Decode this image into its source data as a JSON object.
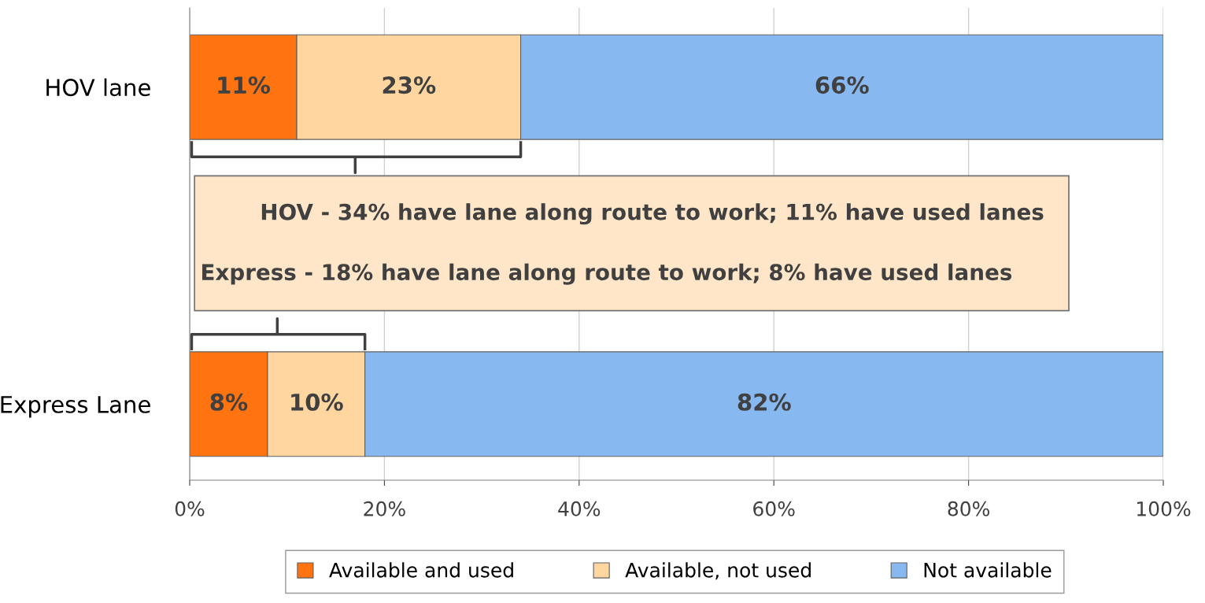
{
  "chart_data": {
    "type": "bar",
    "orientation": "horizontal",
    "stacked": true,
    "categories": [
      "HOV lane",
      "Express Lane"
    ],
    "series": [
      {
        "name": "Available and used",
        "color": "#ff7410",
        "values": [
          11,
          8
        ],
        "value_labels": [
          "11%",
          "8%"
        ]
      },
      {
        "name": "Available, not used",
        "color": "#ffd5a0",
        "values": [
          23,
          10
        ],
        "value_labels": [
          "23%",
          "10%"
        ]
      },
      {
        "name": "Not available",
        "color": "#88b8f0",
        "values": [
          66,
          82
        ],
        "value_labels": [
          "66%",
          "82%"
        ]
      }
    ],
    "xlim": [
      0,
      100
    ],
    "xticks": [
      {
        "value": 0,
        "label": "0%"
      },
      {
        "value": 20,
        "label": "20%"
      },
      {
        "value": 40,
        "label": "40%"
      },
      {
        "value": 60,
        "label": "60%"
      },
      {
        "value": 80,
        "label": "80%"
      },
      {
        "value": 100,
        "label": "100%"
      }
    ],
    "grid": "x",
    "legend": "bottom",
    "annotations": [
      "HOV - 34% have lane along route to work; 11% have used lanes",
      "Express - 18% have lane along route to work; 8% have used lanes"
    ]
  }
}
